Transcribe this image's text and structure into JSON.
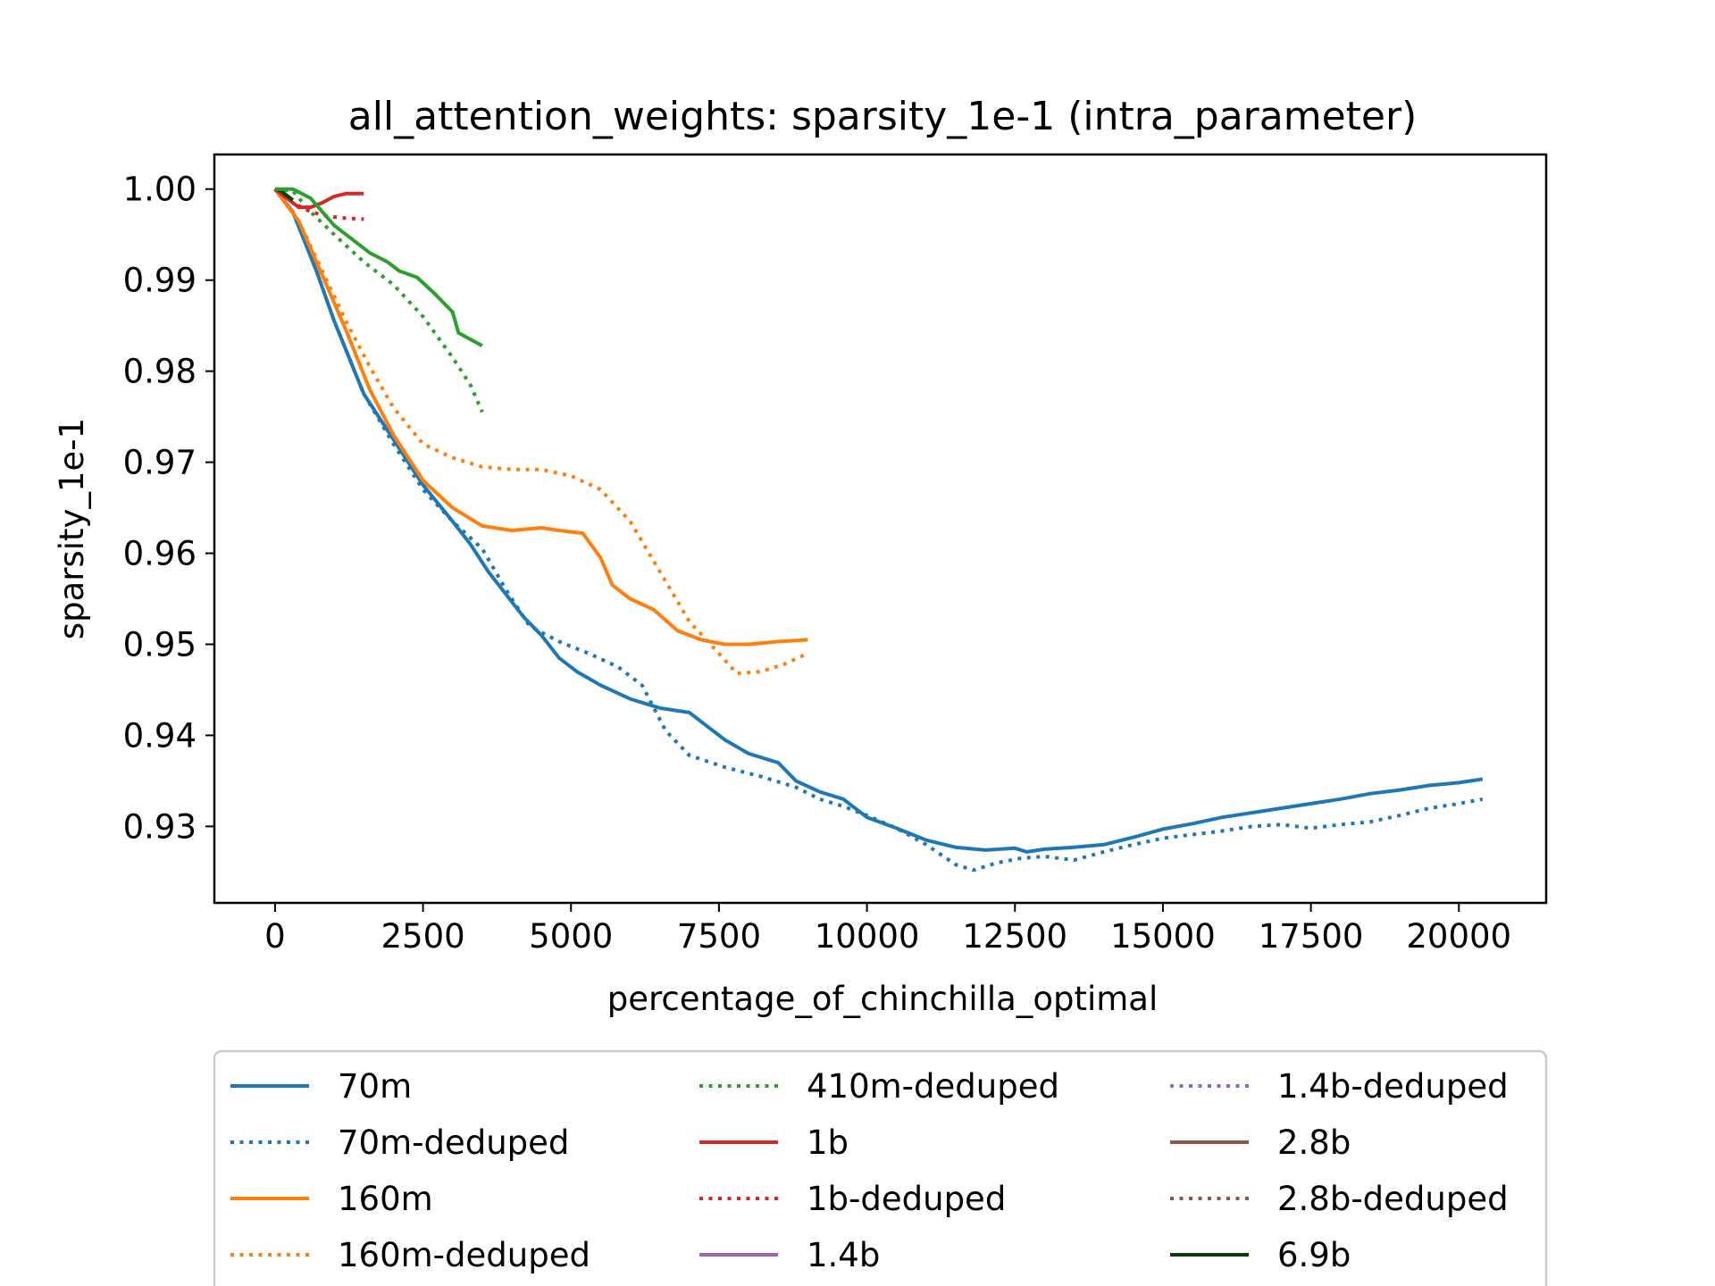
{
  "chart_data": {
    "type": "line",
    "title": "all_attention_weights: sparsity_1e-1 (intra_parameter)",
    "xlabel": "percentage_of_chinchilla_optimal",
    "ylabel": "sparsity_1e-1",
    "xlim": [
      -1025,
      21475
    ],
    "ylim": [
      0.9216,
      1.0038
    ],
    "xticks": [
      0,
      2500,
      5000,
      7500,
      10000,
      12500,
      15000,
      17500,
      20000
    ],
    "yticks": [
      1.0,
      0.99,
      0.98,
      0.97,
      0.96,
      0.95,
      0.94,
      0.93
    ],
    "ytick_labels": [
      "1.00",
      "0.99",
      "0.98",
      "0.97",
      "0.96",
      "0.95",
      "0.94",
      "0.93"
    ],
    "grid": false,
    "legend_position": "below",
    "legend_columns": 3,
    "series": [
      {
        "name": "70m",
        "color": "#1f77b4",
        "style": "solid",
        "points": [
          [
            0,
            1.0
          ],
          [
            300,
            0.9975
          ],
          [
            700,
            0.991
          ],
          [
            1000,
            0.9855
          ],
          [
            1500,
            0.9775
          ],
          [
            2000,
            0.9725
          ],
          [
            2500,
            0.9675
          ],
          [
            3000,
            0.9635
          ],
          [
            3300,
            0.961
          ],
          [
            3600,
            0.958
          ],
          [
            3900,
            0.9555
          ],
          [
            4200,
            0.953
          ],
          [
            4500,
            0.951
          ],
          [
            4800,
            0.9485
          ],
          [
            5100,
            0.947
          ],
          [
            5500,
            0.9455
          ],
          [
            6000,
            0.944
          ],
          [
            6500,
            0.943
          ],
          [
            7000,
            0.9425
          ],
          [
            7200,
            0.9415
          ],
          [
            7600,
            0.9395
          ],
          [
            8000,
            0.938
          ],
          [
            8500,
            0.937
          ],
          [
            8800,
            0.935
          ],
          [
            9200,
            0.9338
          ],
          [
            9600,
            0.933
          ],
          [
            10000,
            0.931
          ],
          [
            10500,
            0.9298
          ],
          [
            11000,
            0.9285
          ],
          [
            11500,
            0.9277
          ],
          [
            12000,
            0.9274
          ],
          [
            12500,
            0.9276
          ],
          [
            12700,
            0.9272
          ],
          [
            13000,
            0.9275
          ],
          [
            13500,
            0.9277
          ],
          [
            14000,
            0.928
          ],
          [
            14500,
            0.9288
          ],
          [
            15000,
            0.9297
          ],
          [
            15500,
            0.9303
          ],
          [
            16000,
            0.931
          ],
          [
            16500,
            0.9315
          ],
          [
            17000,
            0.932
          ],
          [
            17500,
            0.9325
          ],
          [
            18000,
            0.933
          ],
          [
            18500,
            0.9336
          ],
          [
            19000,
            0.934
          ],
          [
            19500,
            0.9345
          ],
          [
            20000,
            0.9348
          ],
          [
            20400,
            0.9352
          ]
        ]
      },
      {
        "name": "70m-deduped",
        "color": "#1f77b4",
        "style": "dotted",
        "points": [
          [
            0,
            1.0
          ],
          [
            300,
            0.9975
          ],
          [
            700,
            0.991
          ],
          [
            1000,
            0.9855
          ],
          [
            1500,
            0.9775
          ],
          [
            2000,
            0.972
          ],
          [
            2500,
            0.967
          ],
          [
            3000,
            0.9635
          ],
          [
            3500,
            0.9605
          ],
          [
            3900,
            0.956
          ],
          [
            4300,
            0.952
          ],
          [
            4800,
            0.9503
          ],
          [
            5300,
            0.949
          ],
          [
            5800,
            0.9475
          ],
          [
            6200,
            0.9455
          ],
          [
            6600,
            0.9405
          ],
          [
            7000,
            0.9378
          ],
          [
            7600,
            0.9365
          ],
          [
            8200,
            0.9355
          ],
          [
            8800,
            0.9343
          ],
          [
            9200,
            0.933
          ],
          [
            9600,
            0.9322
          ],
          [
            10000,
            0.9312
          ],
          [
            10500,
            0.9298
          ],
          [
            11000,
            0.928
          ],
          [
            11500,
            0.9258
          ],
          [
            11800,
            0.9252
          ],
          [
            12200,
            0.926
          ],
          [
            12600,
            0.9265
          ],
          [
            13000,
            0.9267
          ],
          [
            13500,
            0.9263
          ],
          [
            14000,
            0.9272
          ],
          [
            14500,
            0.928
          ],
          [
            15000,
            0.9287
          ],
          [
            15500,
            0.9291
          ],
          [
            16000,
            0.9295
          ],
          [
            16500,
            0.93
          ],
          [
            17000,
            0.9302
          ],
          [
            17500,
            0.9298
          ],
          [
            18000,
            0.9302
          ],
          [
            18500,
            0.9305
          ],
          [
            19000,
            0.9312
          ],
          [
            19500,
            0.932
          ],
          [
            20000,
            0.9325
          ],
          [
            20400,
            0.933
          ]
        ]
      },
      {
        "name": "160m",
        "color": "#ff7f0e",
        "style": "solid",
        "points": [
          [
            0,
            1.0
          ],
          [
            400,
            0.9965
          ],
          [
            800,
            0.9905
          ],
          [
            1200,
            0.9845
          ],
          [
            1600,
            0.978
          ],
          [
            2000,
            0.973
          ],
          [
            2500,
            0.968
          ],
          [
            3000,
            0.965
          ],
          [
            3500,
            0.963
          ],
          [
            4000,
            0.9625
          ],
          [
            4500,
            0.9628
          ],
          [
            4800,
            0.9625
          ],
          [
            5200,
            0.9622
          ],
          [
            5500,
            0.9595
          ],
          [
            5700,
            0.9565
          ],
          [
            6000,
            0.955
          ],
          [
            6400,
            0.9538
          ],
          [
            6800,
            0.9515
          ],
          [
            7200,
            0.9505
          ],
          [
            7600,
            0.95
          ],
          [
            8000,
            0.95
          ],
          [
            8500,
            0.9503
          ],
          [
            9000,
            0.9505
          ]
        ]
      },
      {
        "name": "160m-deduped",
        "color": "#ff7f0e",
        "style": "dotted",
        "points": [
          [
            0,
            1.0
          ],
          [
            400,
            0.9965
          ],
          [
            800,
            0.991
          ],
          [
            1200,
            0.9855
          ],
          [
            1600,
            0.9805
          ],
          [
            2000,
            0.976
          ],
          [
            2500,
            0.972
          ],
          [
            3000,
            0.9705
          ],
          [
            3500,
            0.9695
          ],
          [
            4000,
            0.9692
          ],
          [
            4500,
            0.9692
          ],
          [
            5000,
            0.9685
          ],
          [
            5500,
            0.967
          ],
          [
            6000,
            0.9635
          ],
          [
            6500,
            0.958
          ],
          [
            7000,
            0.9525
          ],
          [
            7500,
            0.949
          ],
          [
            7800,
            0.9468
          ],
          [
            8200,
            0.947
          ],
          [
            8600,
            0.9478
          ],
          [
            9000,
            0.949
          ]
        ]
      },
      {
        "name": "410m-deduped",
        "color": "#2ca02c",
        "style": "dotted",
        "points": [
          [
            0,
            1.0
          ],
          [
            300,
            0.9998
          ],
          [
            600,
            0.9975
          ],
          [
            1000,
            0.995
          ],
          [
            1500,
            0.992
          ],
          [
            2000,
            0.9895
          ],
          [
            2500,
            0.986
          ],
          [
            3000,
            0.9815
          ],
          [
            3300,
            0.9785
          ],
          [
            3500,
            0.9755
          ]
        ]
      },
      {
        "name": "1b",
        "color": "#d62728",
        "style": "solid",
        "points": [
          [
            0,
            1.0
          ],
          [
            200,
            0.999
          ],
          [
            400,
            0.998
          ],
          [
            600,
            0.998
          ],
          [
            800,
            0.9985
          ],
          [
            1000,
            0.9992
          ],
          [
            1200,
            0.9995
          ],
          [
            1500,
            0.9995
          ]
        ]
      },
      {
        "name": "1b-deduped",
        "color": "#d62728",
        "style": "dotted",
        "points": [
          [
            0,
            1.0
          ],
          [
            300,
            0.9985
          ],
          [
            600,
            0.9975
          ],
          [
            900,
            0.997
          ],
          [
            1200,
            0.9968
          ],
          [
            1500,
            0.9967
          ]
        ]
      },
      {
        "name": "1.4b-deduped",
        "color": "#9467bd",
        "style": "dotted",
        "points": []
      },
      {
        "name": "2.8b",
        "color": "#8c564b",
        "style": "solid",
        "points": []
      },
      {
        "name": "2.8b-deduped",
        "color": "#8c564b",
        "style": "dotted",
        "points": []
      },
      {
        "name": "1.4b",
        "color": "#9467bd",
        "style": "solid",
        "points": []
      },
      {
        "name": "6.9b",
        "color": "#0b3d0b",
        "style": "solid",
        "points": [
          [
            0,
            1.0
          ],
          [
            100,
            0.9998
          ],
          [
            200,
            0.9993
          ],
          [
            300,
            0.9988
          ]
        ]
      },
      {
        "name": "410m",
        "color": "#2ca02c",
        "style": "solid",
        "points": [
          [
            0,
            1.0
          ],
          [
            300,
            1.0
          ],
          [
            600,
            0.999
          ],
          [
            800,
            0.9975
          ],
          [
            1000,
            0.996
          ],
          [
            1300,
            0.9945
          ],
          [
            1600,
            0.993
          ],
          [
            1900,
            0.992
          ],
          [
            2100,
            0.991
          ],
          [
            2400,
            0.9903
          ],
          [
            2700,
            0.9885
          ],
          [
            3000,
            0.9865
          ],
          [
            3100,
            0.9842
          ],
          [
            3300,
            0.9835
          ],
          [
            3500,
            0.9828
          ]
        ]
      }
    ],
    "legend": [
      {
        "label": "70m",
        "color": "#1f77b4",
        "style": "solid"
      },
      {
        "label": "70m-deduped",
        "color": "#1f77b4",
        "style": "dotted"
      },
      {
        "label": "160m",
        "color": "#ff7f0e",
        "style": "solid"
      },
      {
        "label": "160m-deduped",
        "color": "#ff7f0e",
        "style": "dotted"
      },
      {
        "label": "410m-deduped",
        "color": "#2ca02c",
        "style": "dotted"
      },
      {
        "label": "1b",
        "color": "#d62728",
        "style": "solid"
      },
      {
        "label": "1b-deduped",
        "color": "#d62728",
        "style": "dotted"
      },
      {
        "label": "1.4b",
        "color": "#9467bd",
        "style": "solid"
      },
      {
        "label": "1.4b-deduped",
        "color": "#9467bd",
        "style": "dotted"
      },
      {
        "label": "2.8b",
        "color": "#8c564b",
        "style": "solid"
      },
      {
        "label": "2.8b-deduped",
        "color": "#8c564b",
        "style": "dotted"
      },
      {
        "label": "6.9b",
        "color": "#0b3d0b",
        "style": "solid"
      }
    ]
  }
}
